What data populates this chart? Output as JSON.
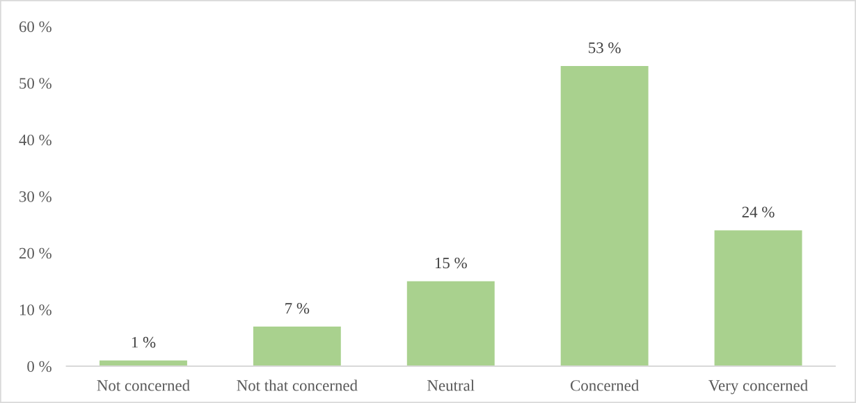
{
  "chart_data": {
    "type": "bar",
    "categories": [
      "Not concerned",
      "Not that concerned",
      "Neutral",
      "Concerned",
      "Very concerned"
    ],
    "values": [
      1,
      7,
      15,
      53,
      24
    ],
    "value_labels": [
      "1 %",
      "7 %",
      "15 %",
      "53 %",
      "24 %"
    ],
    "color": "#a9d18e",
    "ylim": [
      0,
      60
    ],
    "yticks": [
      {
        "value": 0,
        "label": "0 %"
      },
      {
        "value": 10,
        "label": "10 %"
      },
      {
        "value": 20,
        "label": "20 %"
      },
      {
        "value": 30,
        "label": "30 %"
      },
      {
        "value": 40,
        "label": "40 %"
      },
      {
        "value": 50,
        "label": "50 %"
      },
      {
        "value": 60,
        "label": "60 %"
      }
    ]
  }
}
